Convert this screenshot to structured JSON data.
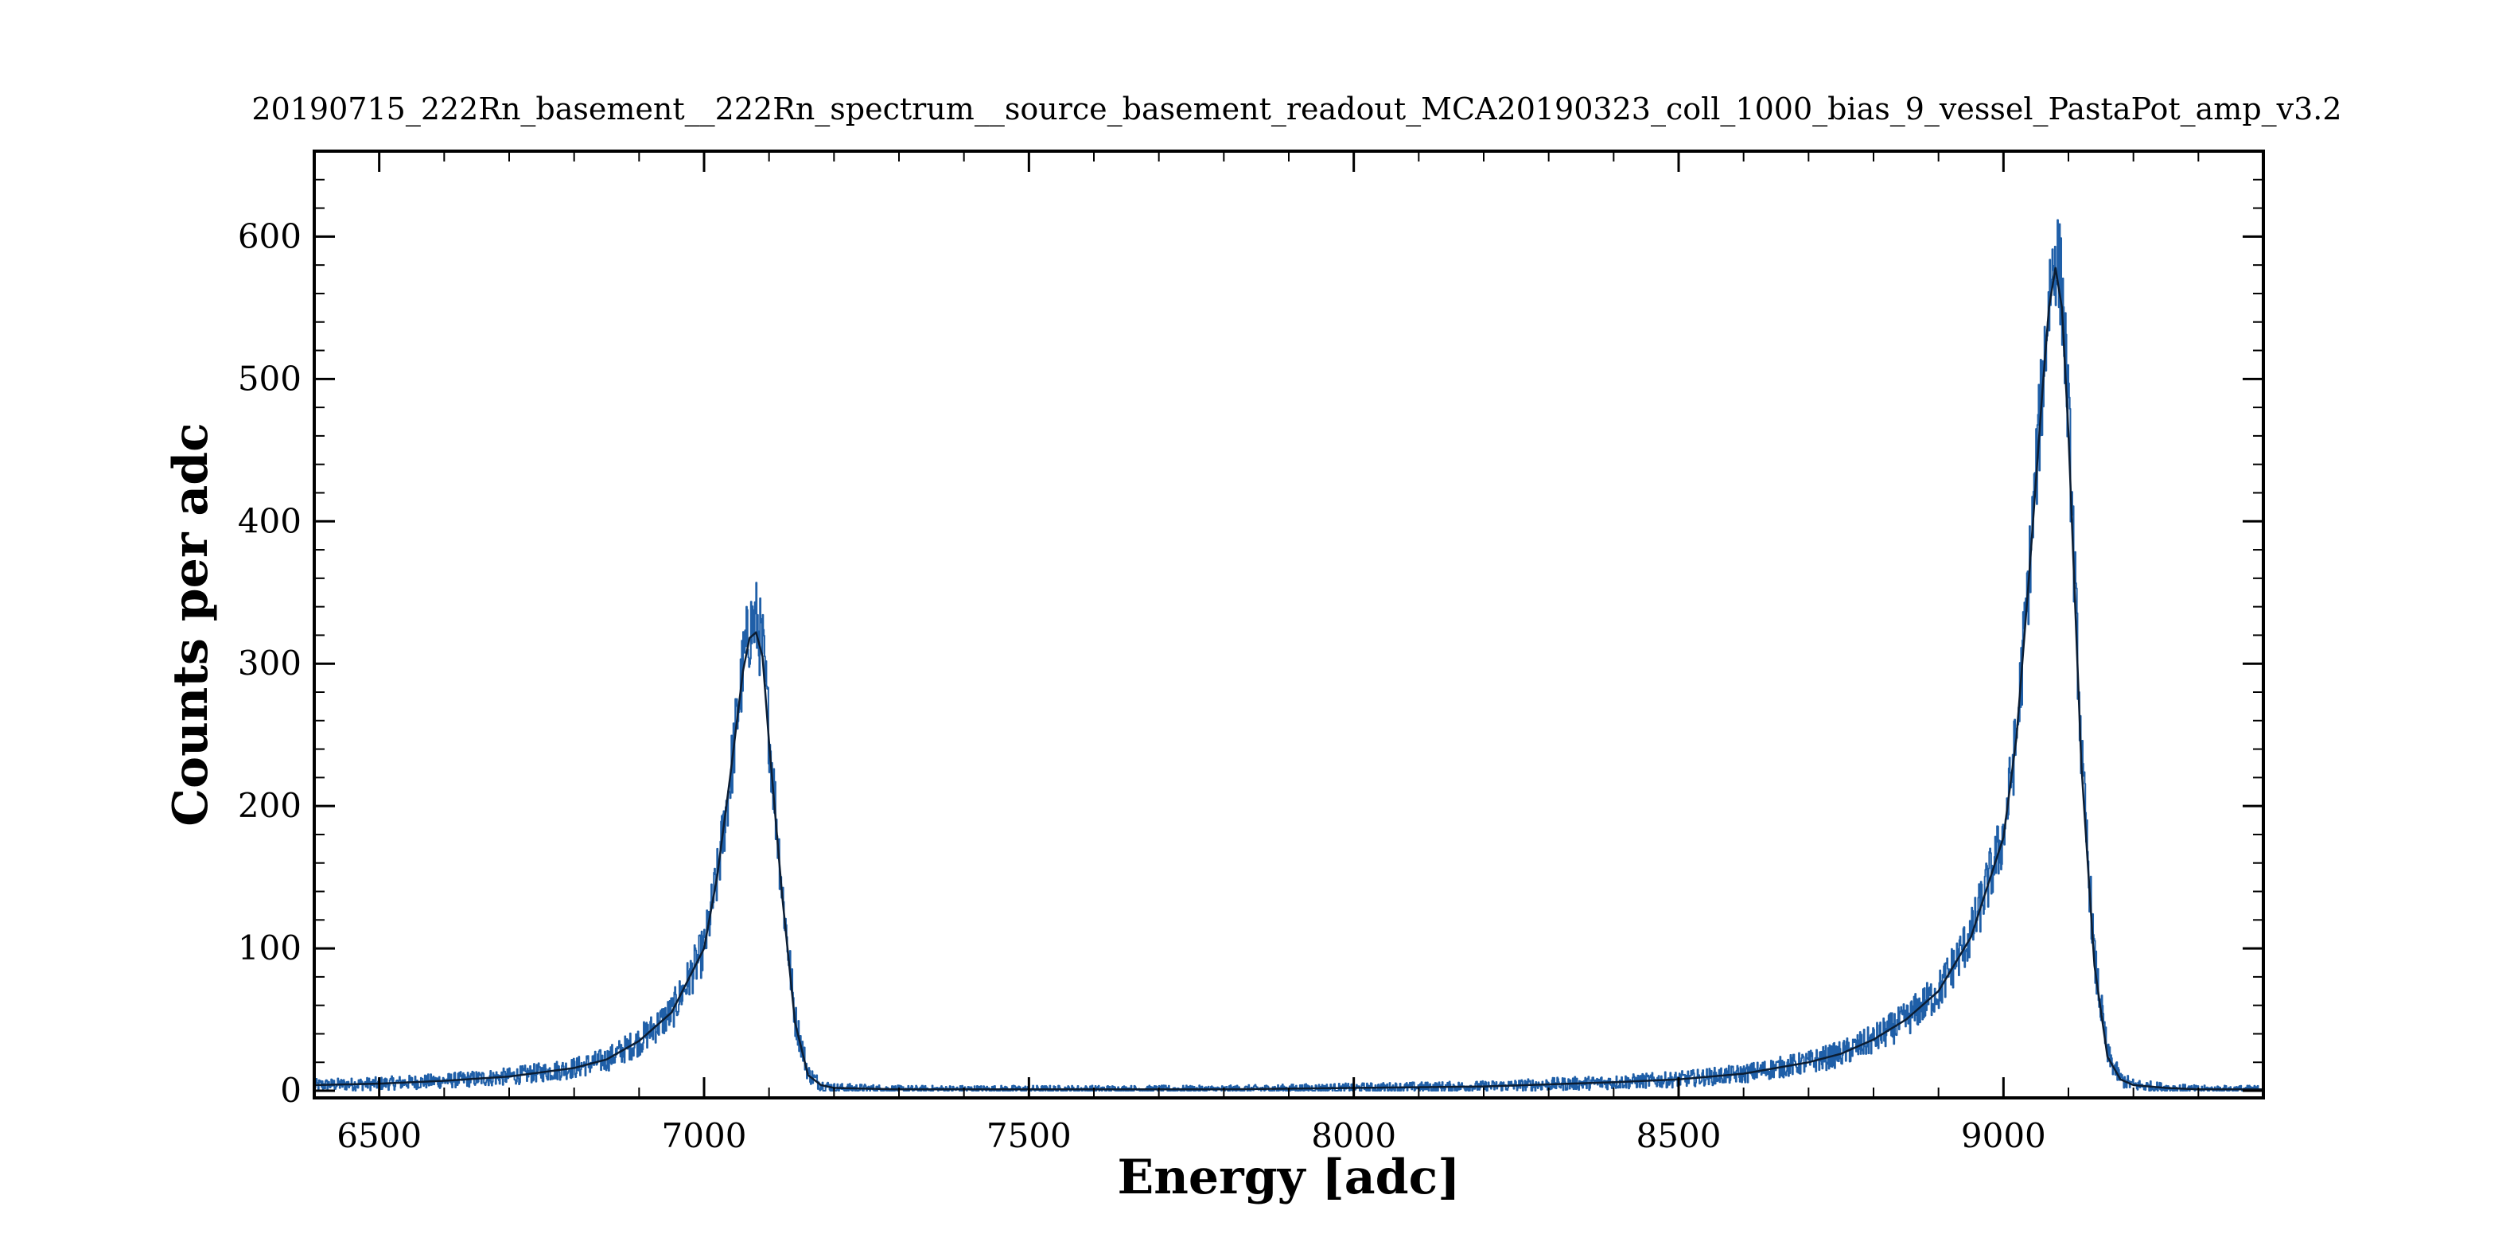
{
  "chart_data": {
    "type": "line",
    "title": "20190715_222Rn_basement__222Rn_spectrum__source_basement_readout_MCA20190323_coll_1000_bias_9_vessel_PastaPot_amp_v3.2",
    "xlabel": "Energy [adc]",
    "ylabel": "Counts per adc",
    "xlim": [
      6400,
      9400
    ],
    "ylim": [
      -5,
      660
    ],
    "xticks": [
      6500,
      7000,
      7500,
      8000,
      8500,
      9000
    ],
    "xtick_labels": [
      "6500",
      "7000",
      "7500",
      "8000",
      "8500",
      "9000"
    ],
    "yticks": [
      0,
      100,
      200,
      300,
      400,
      500,
      600
    ],
    "ytick_labels": [
      "0",
      "100",
      "200",
      "300",
      "400",
      "500",
      "600"
    ],
    "grid": false,
    "series": [
      {
        "style": "noisy histogram",
        "color": "#1f5fa8",
        "x": [
          6400,
          6500,
          6600,
          6700,
          6800,
          6850,
          6900,
          6950,
          7000,
          7020,
          7040,
          7060,
          7070,
          7080,
          7090,
          7100,
          7120,
          7140,
          7160,
          7180,
          7200,
          7300,
          7500,
          7800,
          8000,
          8200,
          8400,
          8500,
          8600,
          8700,
          8750,
          8800,
          8850,
          8900,
          8950,
          9000,
          9020,
          9040,
          9060,
          9070,
          9080,
          9090,
          9100,
          9110,
          9120,
          9140,
          9160,
          9180,
          9200,
          9250,
          9300,
          9400
        ],
        "y": [
          4,
          5,
          7,
          10,
          16,
          22,
          35,
          55,
          100,
          150,
          220,
          300,
          325,
          330,
          310,
          250,
          140,
          50,
          12,
          4,
          2,
          1,
          1,
          1,
          2,
          3,
          6,
          8,
          12,
          20,
          26,
          36,
          50,
          70,
          110,
          180,
          250,
          370,
          500,
          560,
          590,
          560,
          470,
          350,
          230,
          90,
          25,
          8,
          4,
          2,
          1,
          1
        ]
      },
      {
        "style": "smoothed",
        "color": "#0b1d33",
        "x": [
          6400,
          6500,
          6600,
          6700,
          6800,
          6850,
          6900,
          6950,
          7000,
          7020,
          7040,
          7060,
          7070,
          7080,
          7090,
          7100,
          7120,
          7140,
          7160,
          7180,
          7200,
          7300,
          7500,
          7800,
          8000,
          8200,
          8400,
          8500,
          8600,
          8700,
          8750,
          8800,
          8850,
          8900,
          8950,
          9000,
          9020,
          9040,
          9060,
          9070,
          9080,
          9090,
          9100,
          9110,
          9120,
          9140,
          9160,
          9180,
          9200,
          9250,
          9300,
          9400
        ],
        "y": [
          4,
          5,
          7,
          10,
          16,
          22,
          35,
          55,
          100,
          150,
          220,
          295,
          318,
          322,
          305,
          245,
          138,
          48,
          11,
          4,
          2,
          1,
          1,
          1,
          2,
          3,
          6,
          8,
          12,
          20,
          26,
          36,
          50,
          70,
          108,
          178,
          248,
          365,
          492,
          550,
          578,
          550,
          462,
          345,
          228,
          88,
          24,
          8,
          4,
          2,
          1,
          1
        ]
      }
    ]
  }
}
